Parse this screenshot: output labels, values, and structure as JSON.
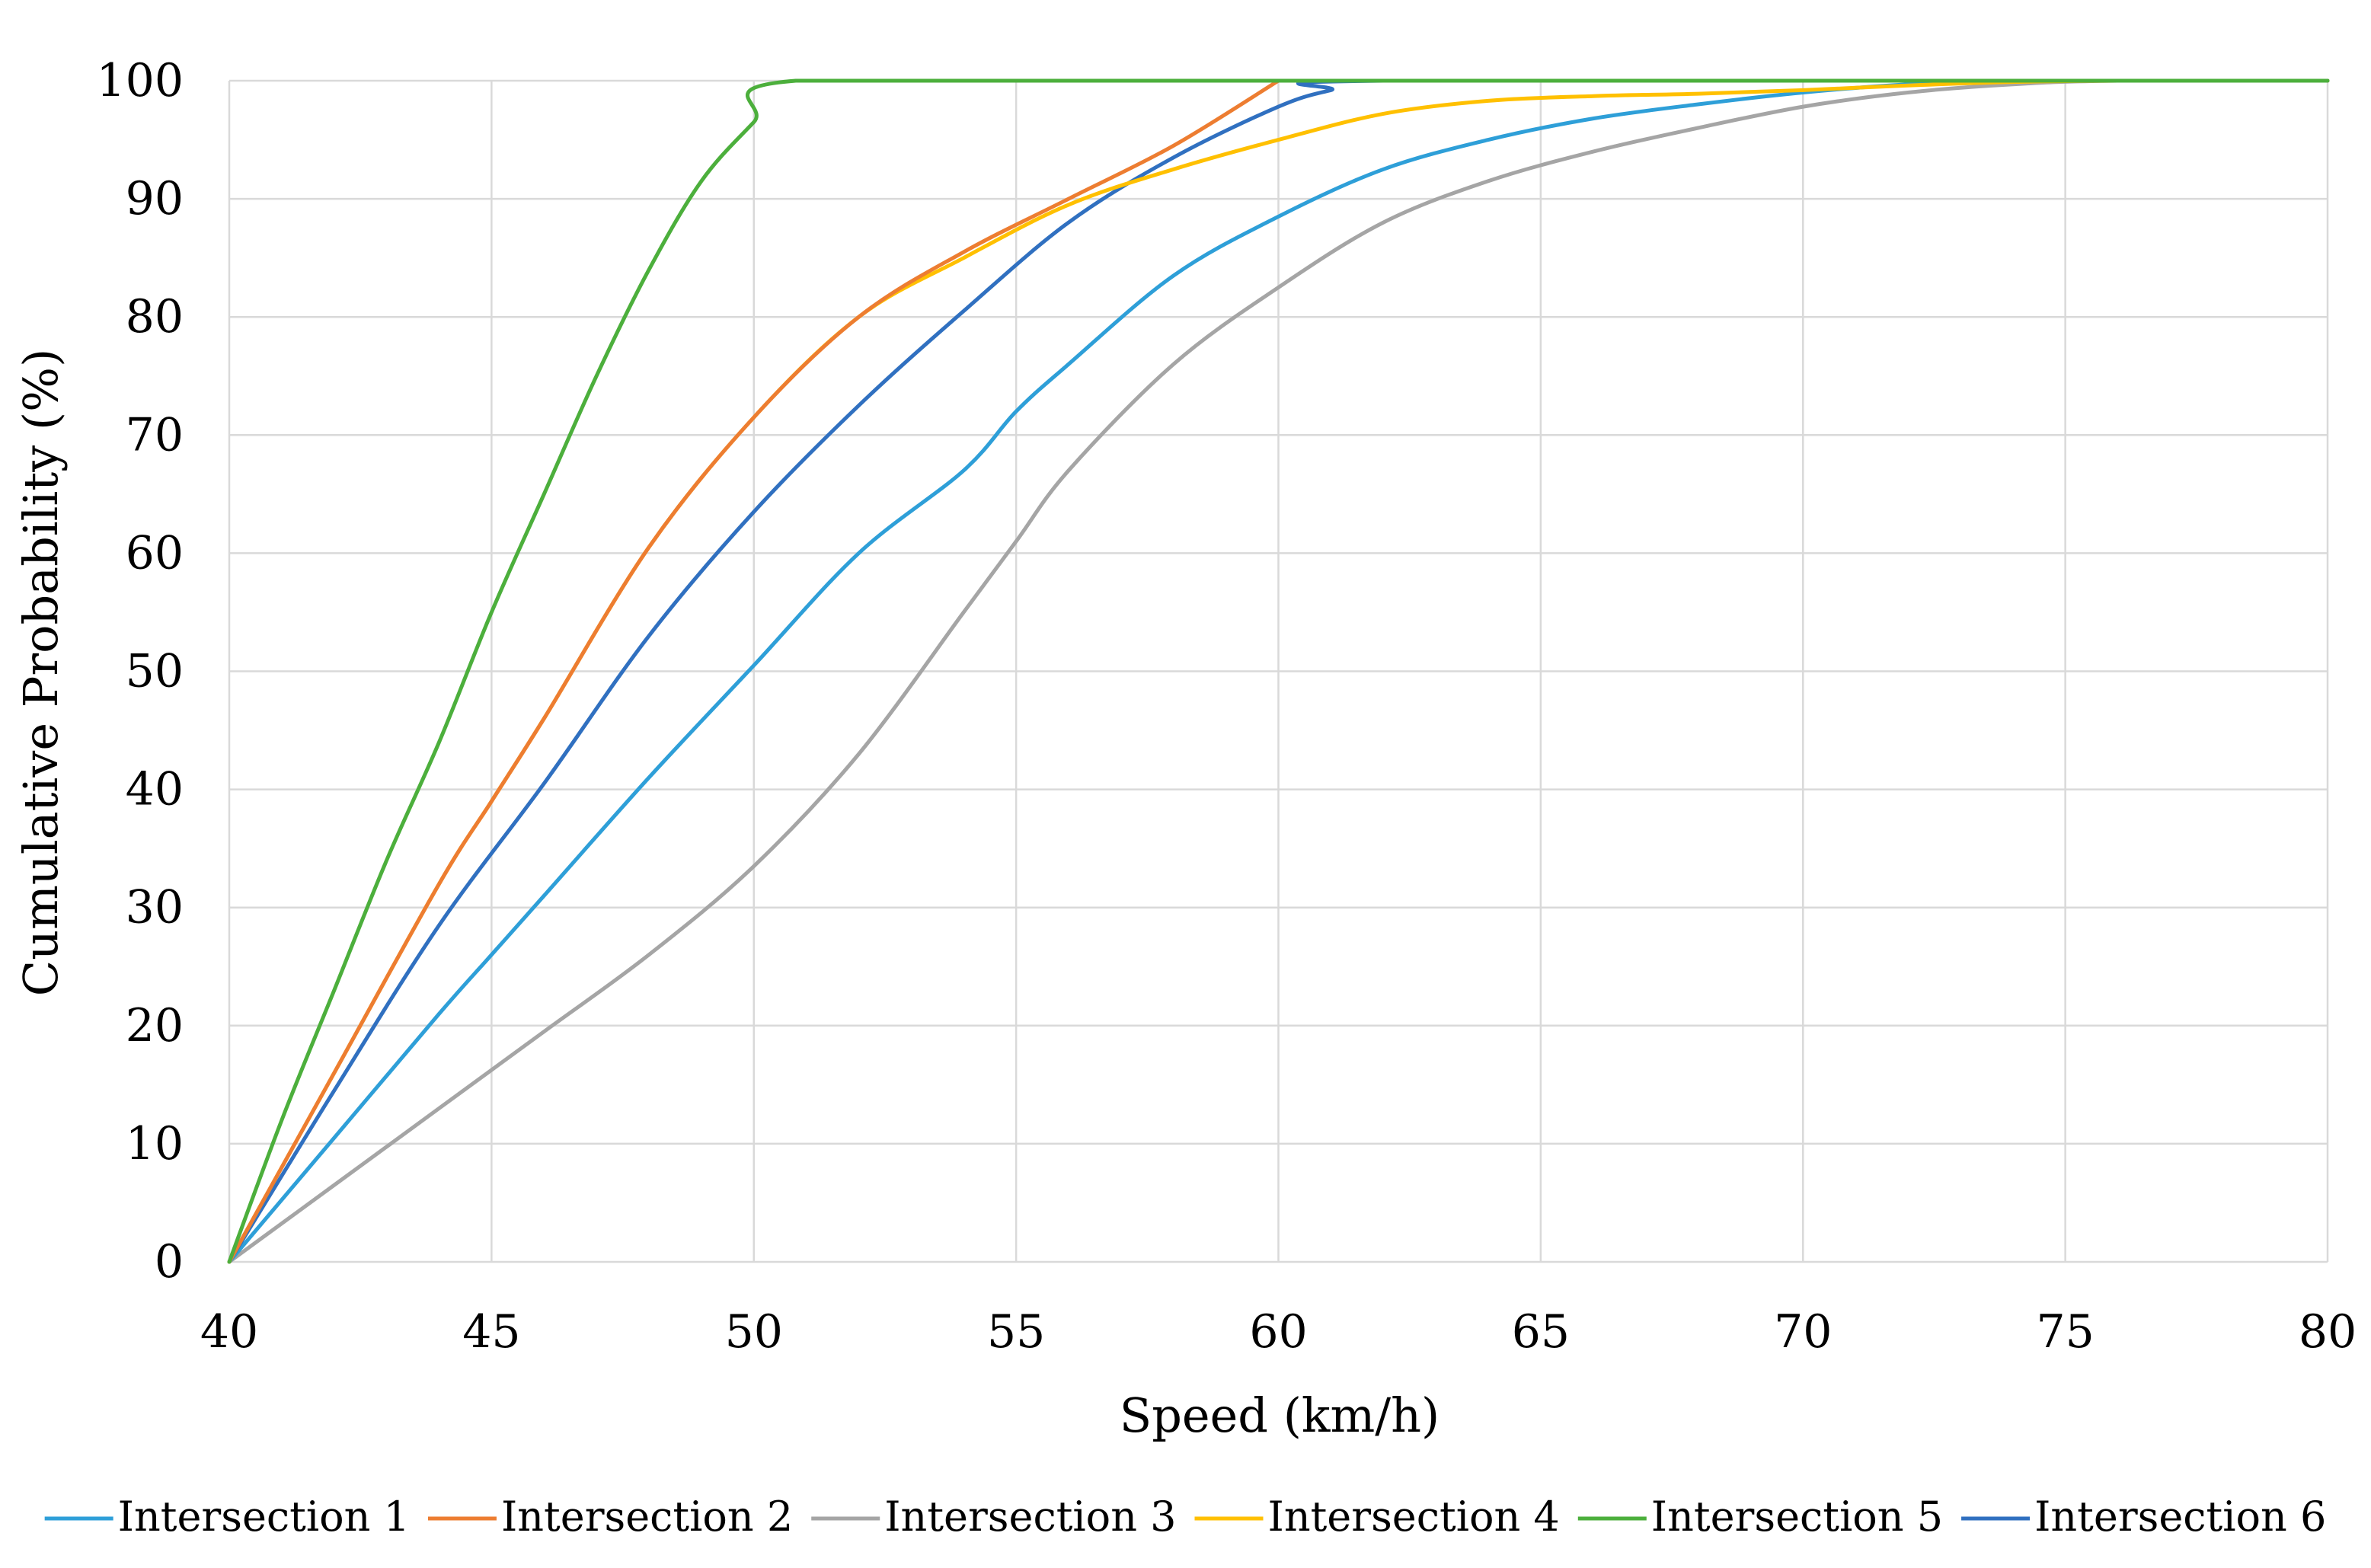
{
  "chart_data": {
    "type": "line",
    "title": "",
    "xlabel": "Speed (km/h)",
    "ylabel": "Cumulative Probability (%)",
    "xlim": [
      40,
      80
    ],
    "ylim": [
      0,
      100
    ],
    "x_ticks": [
      40,
      45,
      50,
      55,
      60,
      65,
      70,
      75,
      80
    ],
    "y_ticks": [
      0,
      10,
      20,
      30,
      40,
      50,
      60,
      70,
      80,
      90,
      100
    ],
    "grid": true,
    "legend": "bottom",
    "series": [
      {
        "name": "Intersection 1",
        "color": "#2E9FD8",
        "x": [
          40,
          42,
          44,
          45,
          46,
          48,
          50,
          52,
          54,
          55,
          56,
          58,
          60,
          62,
          64,
          66,
          68,
          70,
          72,
          74,
          76,
          80
        ],
        "y": [
          0,
          10.5,
          21,
          26,
          31,
          41,
          50.5,
          60,
          67,
          72,
          76,
          83.5,
          88.5,
          92.5,
          95,
          96.8,
          98,
          99,
          99.7,
          100,
          100,
          100
        ]
      },
      {
        "name": "Intersection 2",
        "color": "#ED7D31",
        "x": [
          40,
          42,
          44,
          45,
          46,
          48,
          50,
          52,
          54,
          56,
          58,
          60
        ],
        "y": [
          0,
          16,
          32,
          39,
          46,
          60.5,
          71.5,
          80,
          85.5,
          90,
          94.5,
          100
        ]
      },
      {
        "name": "Intersection 3",
        "color": "#A5A5A5",
        "x": [
          40,
          42,
          44,
          46,
          48,
          50,
          52,
          54,
          55,
          56,
          58,
          60,
          62,
          64,
          66,
          68,
          70,
          72,
          74,
          76,
          80
        ],
        "y": [
          0,
          6.5,
          13,
          19.5,
          26,
          33.5,
          43,
          55,
          61,
          67,
          76,
          82.5,
          88,
          91.5,
          94,
          96,
          97.8,
          99,
          99.7,
          100,
          100
        ]
      },
      {
        "name": "Intersection 4",
        "color": "#FFC000",
        "x": [
          40,
          42,
          44,
          45,
          46,
          48,
          50,
          52,
          54,
          56,
          58,
          60,
          62,
          64,
          66,
          68,
          70,
          72,
          74,
          76,
          80
        ],
        "y": [
          0,
          16,
          32,
          39,
          46,
          60.5,
          71.5,
          80,
          85,
          89.5,
          92.5,
          95,
          97.2,
          98.3,
          98.7,
          98.9,
          99.2,
          99.6,
          99.9,
          100,
          100
        ]
      },
      {
        "name": "Intersection 5",
        "color": "#4CAF3C",
        "x": [
          40,
          41,
          42,
          43,
          44,
          45,
          46,
          47,
          48,
          49,
          50,
          50.8,
          60,
          80
        ],
        "y": [
          0,
          12,
          23,
          34,
          44,
          55,
          65,
          75,
          84,
          91.5,
          96.5,
          100,
          100,
          100
        ]
      },
      {
        "name": "Intersection 6",
        "color": "#3070C0",
        "x": [
          40,
          42,
          44,
          46,
          48,
          50,
          52,
          54,
          56,
          58,
          60,
          61,
          62,
          80
        ],
        "y": [
          0,
          14.5,
          28.5,
          40.5,
          53,
          63.5,
          72.5,
          80.5,
          88,
          93.5,
          97.8,
          99.2,
          100,
          100
        ]
      }
    ]
  }
}
